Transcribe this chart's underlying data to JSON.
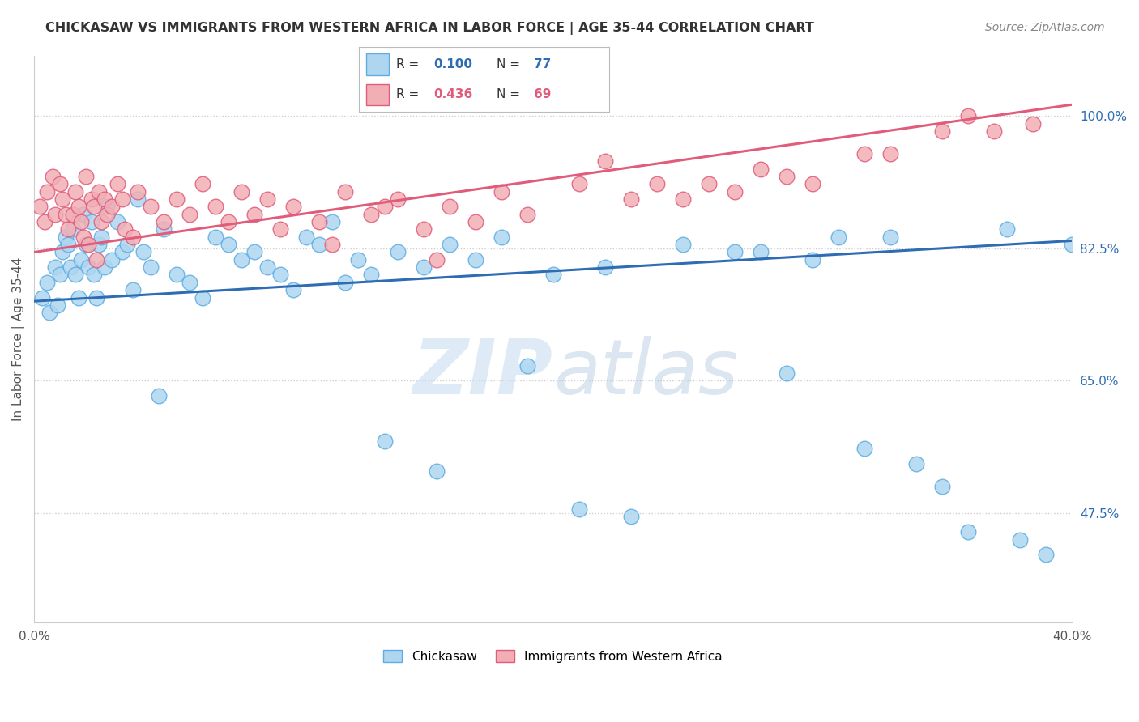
{
  "title": "CHICKASAW VS IMMIGRANTS FROM WESTERN AFRICA IN LABOR FORCE | AGE 35-44 CORRELATION CHART",
  "source": "Source: ZipAtlas.com",
  "ylabel": "In Labor Force | Age 35-44",
  "xlim": [
    0.0,
    40.0
  ],
  "ylim": [
    33.0,
    108.0
  ],
  "yticks": [
    47.5,
    65.0,
    82.5,
    100.0
  ],
  "xticks": [
    0.0,
    10.0,
    20.0,
    30.0,
    40.0
  ],
  "xtick_labels": [
    "0.0%",
    "",
    "",
    "",
    "40.0%"
  ],
  "ytick_labels": [
    "47.5%",
    "65.0%",
    "82.5%",
    "100.0%"
  ],
  "chickasaw_color": "#aed6f1",
  "immigrant_color": "#f1aeb5",
  "chickasaw_edge": "#5dade2",
  "immigrant_edge": "#e05c7a",
  "blue_line_color": "#2e6db4",
  "pink_line_color": "#e05c7a",
  "R_blue": 0.1,
  "N_blue": 77,
  "R_pink": 0.436,
  "N_pink": 69,
  "legend_blue_label": "Chickasaw",
  "legend_pink_label": "Immigrants from Western Africa",
  "watermark_zip": "ZIP",
  "watermark_atlas": "atlas",
  "blue_line_y0": 75.5,
  "blue_line_y1": 83.5,
  "pink_line_y0": 82.0,
  "pink_line_y1": 101.5,
  "chickasaw_x": [
    0.3,
    0.5,
    0.6,
    0.8,
    0.9,
    1.0,
    1.1,
    1.2,
    1.3,
    1.4,
    1.5,
    1.6,
    1.7,
    1.8,
    1.9,
    2.0,
    2.1,
    2.2,
    2.3,
    2.4,
    2.5,
    2.6,
    2.7,
    2.8,
    3.0,
    3.2,
    3.4,
    3.6,
    3.8,
    4.0,
    4.2,
    4.5,
    4.8,
    5.0,
    5.5,
    6.0,
    6.5,
    7.0,
    7.5,
    8.0,
    8.5,
    9.0,
    9.5,
    10.0,
    10.5,
    11.0,
    11.5,
    12.0,
    12.5,
    13.0,
    13.5,
    14.0,
    15.0,
    15.5,
    16.0,
    17.0,
    18.0,
    19.0,
    20.0,
    21.0,
    22.0,
    23.0,
    25.0,
    27.0,
    28.0,
    29.0,
    30.0,
    31.0,
    32.0,
    33.0,
    34.0,
    35.0,
    36.0,
    37.5,
    38.0,
    39.0,
    40.0
  ],
  "chickasaw_y": [
    76.0,
    78.0,
    74.0,
    80.0,
    75.0,
    79.0,
    82.0,
    84.0,
    83.0,
    80.0,
    85.0,
    79.0,
    76.0,
    81.0,
    87.0,
    83.0,
    80.0,
    86.0,
    79.0,
    76.0,
    83.0,
    84.0,
    80.0,
    88.0,
    81.0,
    86.0,
    82.0,
    83.0,
    77.0,
    89.0,
    82.0,
    80.0,
    63.0,
    85.0,
    79.0,
    78.0,
    76.0,
    84.0,
    83.0,
    81.0,
    82.0,
    80.0,
    79.0,
    77.0,
    84.0,
    83.0,
    86.0,
    78.0,
    81.0,
    79.0,
    57.0,
    82.0,
    80.0,
    53.0,
    83.0,
    81.0,
    84.0,
    67.0,
    79.0,
    48.0,
    80.0,
    47.0,
    83.0,
    82.0,
    82.0,
    66.0,
    81.0,
    84.0,
    56.0,
    84.0,
    54.0,
    51.0,
    45.0,
    85.0,
    44.0,
    42.0,
    83.0
  ],
  "immigrant_x": [
    0.2,
    0.4,
    0.5,
    0.7,
    0.8,
    1.0,
    1.1,
    1.2,
    1.3,
    1.5,
    1.6,
    1.7,
    1.8,
    1.9,
    2.0,
    2.1,
    2.2,
    2.3,
    2.4,
    2.5,
    2.6,
    2.7,
    2.8,
    3.0,
    3.2,
    3.4,
    3.5,
    3.8,
    4.0,
    4.5,
    5.0,
    5.5,
    6.0,
    6.5,
    7.0,
    7.5,
    8.0,
    8.5,
    9.0,
    9.5,
    10.0,
    11.0,
    11.5,
    12.0,
    13.0,
    13.5,
    14.0,
    15.0,
    15.5,
    16.0,
    17.0,
    18.0,
    19.0,
    21.0,
    22.0,
    23.0,
    24.0,
    25.0,
    26.0,
    27.0,
    28.0,
    29.0,
    30.0,
    32.0,
    33.0,
    35.0,
    36.0,
    37.0,
    38.5
  ],
  "immigrant_y": [
    88.0,
    86.0,
    90.0,
    92.0,
    87.0,
    91.0,
    89.0,
    87.0,
    85.0,
    87.0,
    90.0,
    88.0,
    86.0,
    84.0,
    92.0,
    83.0,
    89.0,
    88.0,
    81.0,
    90.0,
    86.0,
    89.0,
    87.0,
    88.0,
    91.0,
    89.0,
    85.0,
    84.0,
    90.0,
    88.0,
    86.0,
    89.0,
    87.0,
    91.0,
    88.0,
    86.0,
    90.0,
    87.0,
    89.0,
    85.0,
    88.0,
    86.0,
    83.0,
    90.0,
    87.0,
    88.0,
    89.0,
    85.0,
    81.0,
    88.0,
    86.0,
    90.0,
    87.0,
    91.0,
    94.0,
    89.0,
    91.0,
    89.0,
    91.0,
    90.0,
    93.0,
    92.0,
    91.0,
    95.0,
    95.0,
    98.0,
    100.0,
    98.0,
    99.0
  ]
}
